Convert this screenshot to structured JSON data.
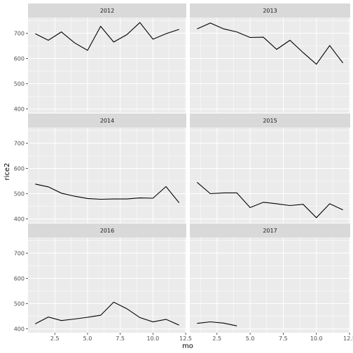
{
  "chart_data": {
    "type": "line",
    "facet_by": "year",
    "facets": [
      {
        "label": "2012",
        "x": [
          1,
          2,
          3,
          4,
          5,
          6,
          7,
          8,
          9,
          10,
          11,
          12
        ],
        "y": [
          698,
          672,
          705,
          662,
          632,
          727,
          665,
          694,
          742,
          676,
          698,
          715
        ]
      },
      {
        "label": "2013",
        "x": [
          1,
          2,
          3,
          4,
          5,
          6,
          7,
          8,
          9,
          10,
          11,
          12
        ],
        "y": [
          717,
          740,
          717,
          705,
          683,
          684,
          636,
          672,
          623,
          577,
          651,
          582
        ]
      },
      {
        "label": "2014",
        "x": [
          1,
          2,
          3,
          4,
          5,
          6,
          7,
          8,
          9,
          10,
          11,
          12
        ],
        "y": [
          538,
          527,
          502,
          490,
          481,
          478,
          479,
          479,
          483,
          482,
          528,
          464
        ]
      },
      {
        "label": "2015",
        "x": [
          1,
          2,
          3,
          4,
          5,
          6,
          7,
          8,
          9,
          10,
          11,
          12
        ],
        "y": [
          545,
          500,
          503,
          503,
          445,
          466,
          460,
          453,
          458,
          405,
          460,
          436
        ]
      },
      {
        "label": "2016",
        "x": [
          1,
          2,
          3,
          4,
          5,
          6,
          7,
          8,
          9,
          10,
          11,
          12
        ],
        "y": [
          420,
          447,
          433,
          439,
          446,
          454,
          506,
          480,
          445,
          428,
          438,
          415
        ]
      },
      {
        "label": "2017",
        "x": [
          1,
          2,
          3,
          4
        ],
        "y": [
          422,
          428,
          423,
          412
        ]
      }
    ],
    "xlabel": "mo",
    "ylabel": "rice2",
    "xlim": [
      0.45,
      12.55
    ],
    "ylim": [
      385,
      762
    ],
    "xticks": [
      2.5,
      5.0,
      7.5,
      10.0,
      12.5
    ],
    "xtick_labels": [
      "2.5",
      "5.0",
      "7.5",
      "10.0",
      "12.5"
    ],
    "yticks": [
      400,
      500,
      600,
      700
    ],
    "ytick_labels": [
      "400",
      "500",
      "600",
      "700"
    ],
    "grid": true,
    "legend": "none",
    "colors": {
      "panel_bg": "#ebebeb",
      "strip_bg": "#d9d9d9",
      "grid_major": "#ffffff",
      "line": "#000000"
    }
  }
}
